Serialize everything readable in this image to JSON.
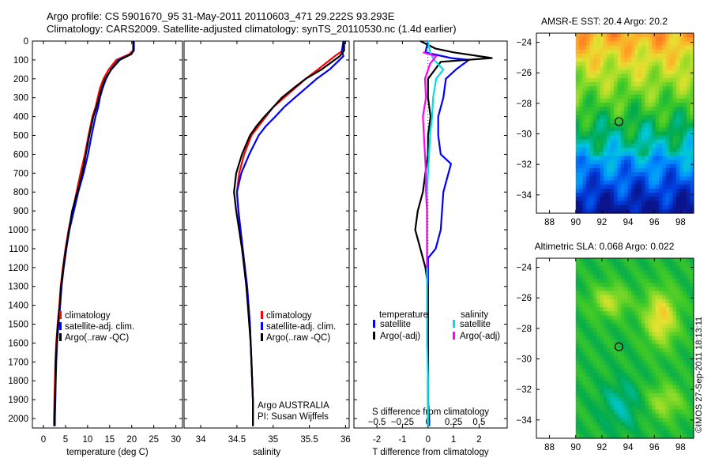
{
  "header": {
    "line1": "Argo profile: CS 5901670_95 31-May-2011 20110603_471 29.222S 93.293E",
    "line2": "Climatology: CARS2009. Satellite-adjusted climatology: synTS_20110530.nc (1.4d earlier)"
  },
  "credit": "©IMOS 27-Sep-2011 18:13:11",
  "colors": {
    "climatology": "#ff0000",
    "satellite": "#0000ff",
    "argo": "#000000",
    "sat_s": "#00e0e0",
    "argo_s": "#ff00ff"
  },
  "depth_ticks": [
    0,
    100,
    200,
    300,
    400,
    500,
    600,
    700,
    800,
    900,
    1000,
    1100,
    1200,
    1300,
    1400,
    1500,
    1600,
    1700,
    1800,
    1900,
    2000
  ],
  "chart_data": [
    {
      "type": "line",
      "xlabel": "temperature (deg C)",
      "xticks": [
        0,
        5,
        10,
        15,
        20,
        25,
        30
      ],
      "xlim": [
        -2.5,
        31.5
      ],
      "ylim": [
        2050,
        0
      ],
      "legend": [
        "climatology",
        "satellite-adj. clim.",
        "Argo(..raw -QC)"
      ],
      "series": [
        {
          "name": "climatology",
          "color": "#ff0000",
          "x": [
            20.3,
            20.3,
            19.4,
            16.5,
            14.8,
            13.6,
            12.8,
            12.3,
            11.8,
            11.1,
            10.2,
            9.4,
            8.4,
            7.5,
            6.6,
            5.7,
            5.0,
            4.4,
            3.9,
            3.6,
            3.2,
            2.9,
            2.7,
            2.6,
            2.5,
            2.4,
            2.4
          ],
          "y": [
            0,
            50,
            70,
            100,
            150,
            200,
            250,
            300,
            350,
            400,
            500,
            600,
            700,
            800,
            900,
            1000,
            1100,
            1200,
            1300,
            1400,
            1500,
            1600,
            1700,
            1800,
            1900,
            2000,
            2040
          ]
        },
        {
          "name": "satellite-adj. clim.",
          "color": "#0000ff",
          "x": [
            20.5,
            20.5,
            19.8,
            17.0,
            15.3,
            14.2,
            13.4,
            12.8,
            12.4,
            11.8,
            10.9,
            10.1,
            9.1,
            7.9,
            6.9,
            5.9,
            5.2,
            4.6,
            4.1,
            3.8,
            3.4,
            3.1,
            2.9,
            2.8,
            2.7,
            2.6,
            2.6
          ],
          "y": [
            0,
            50,
            70,
            100,
            150,
            200,
            250,
            300,
            350,
            400,
            500,
            600,
            700,
            800,
            900,
            1000,
            1100,
            1200,
            1300,
            1400,
            1500,
            1600,
            1700,
            1800,
            1900,
            2000,
            2040
          ]
        },
        {
          "name": "Argo(..raw -QC)",
          "color": "#000000",
          "x": [
            20.4,
            20.4,
            19.9,
            17.3,
            15.4,
            14.0,
            13.2,
            12.6,
            12.0,
            11.3,
            10.4,
            9.6,
            8.8,
            7.7,
            6.5,
            5.8,
            5.1,
            4.5,
            4.0,
            3.7,
            3.3,
            3.0,
            2.8,
            2.7,
            2.6,
            2.5,
            2.5
          ],
          "y": [
            0,
            50,
            70,
            100,
            150,
            200,
            250,
            300,
            350,
            400,
            500,
            600,
            700,
            800,
            900,
            1000,
            1100,
            1200,
            1300,
            1400,
            1500,
            1600,
            1700,
            1800,
            1900,
            2000,
            2040
          ]
        }
      ]
    },
    {
      "type": "line",
      "xlabel": "salinity",
      "xticks": [
        34,
        34.5,
        35,
        35.5,
        36
      ],
      "xticks_labels": [
        "34",
        "34.5",
        "35",
        "35.5",
        "36"
      ],
      "xlim": [
        33.77,
        36.05
      ],
      "ylim": [
        2050,
        0
      ],
      "legend": [
        "climatology",
        "satellite-adj. clim.",
        "Argo(..raw -QC)"
      ],
      "annotation": [
        "Argo AUSTRALIA",
        "PI: Susan Wijffels"
      ],
      "series": [
        {
          "name": "climatology",
          "color": "#ff0000",
          "x": [
            35.97,
            35.96,
            35.85,
            35.62,
            35.45,
            35.3,
            35.15,
            35.0,
            34.9,
            34.8,
            34.7,
            34.6,
            34.53,
            34.5,
            34.52,
            34.55,
            34.58,
            34.61,
            34.64,
            34.66,
            34.68,
            34.69,
            34.7,
            34.71,
            34.72,
            34.72
          ],
          "y": [
            0,
            50,
            80,
            150,
            200,
            250,
            300,
            350,
            400,
            450,
            500,
            600,
            700,
            800,
            900,
            1000,
            1100,
            1200,
            1300,
            1400,
            1500,
            1600,
            1700,
            1800,
            1900,
            2040
          ]
        },
        {
          "name": "satellite-adj. clim.",
          "color": "#0000ff",
          "x": [
            35.97,
            35.95,
            35.97,
            35.78,
            35.6,
            35.45,
            35.3,
            35.15,
            35.03,
            34.9,
            34.8,
            34.67,
            34.56,
            34.5,
            34.52,
            34.55,
            34.58,
            34.61,
            34.64,
            34.66,
            34.68,
            34.69,
            34.7,
            34.71,
            34.72,
            34.72
          ],
          "y": [
            0,
            50,
            80,
            150,
            200,
            250,
            300,
            350,
            400,
            450,
            500,
            600,
            700,
            800,
            900,
            1000,
            1100,
            1200,
            1300,
            1400,
            1500,
            1600,
            1700,
            1800,
            1900,
            2040
          ]
        },
        {
          "name": "Argo(..raw -QC)",
          "color": "#000000",
          "x": [
            35.98,
            35.98,
            35.92,
            35.67,
            35.45,
            35.28,
            35.12,
            35.0,
            34.88,
            34.77,
            34.68,
            34.57,
            34.49,
            34.46,
            34.49,
            34.53,
            34.57,
            34.6,
            34.63,
            34.65,
            34.67,
            34.69,
            34.7,
            34.71,
            34.72,
            34.72
          ],
          "y": [
            0,
            50,
            80,
            150,
            200,
            250,
            300,
            350,
            400,
            450,
            500,
            600,
            700,
            800,
            900,
            1000,
            1100,
            1200,
            1300,
            1400,
            1500,
            1600,
            1700,
            1800,
            1900,
            2040
          ]
        }
      ]
    },
    {
      "type": "line",
      "xlabel": "T difference from climatology",
      "xlabel_top": "S difference from climatology",
      "xticks": [
        -2,
        -1,
        0,
        1,
        2
      ],
      "xlim": [
        -2.9,
        3.1
      ],
      "sticks": [
        -0.5,
        -0.25,
        0,
        0.25,
        0.5
      ],
      "slim": [
        -0.725,
        0.775
      ],
      "ylim": [
        2050,
        0
      ],
      "legend_titles": [
        "temperature",
        "salinity"
      ],
      "legend": [
        [
          "satellite",
          "Argo(-adj)"
        ],
        [
          "satellite",
          "Argo(-adj)"
        ]
      ],
      "series": [
        {
          "name": "satellite",
          "color": "#0000ff",
          "kind": "T",
          "x": [
            0,
            -0.1,
            0.9,
            1.6,
            1.1,
            0.7,
            0.6,
            0.4,
            0.4,
            0.5,
            0.9,
            0.6,
            0.5,
            0.3,
            0.0,
            0.0,
            0.0,
            0.0,
            0.0,
            0.05,
            0.05
          ],
          "y": [
            0,
            60,
            90,
            100,
            150,
            200,
            300,
            400,
            500,
            600,
            650,
            800,
            1000,
            1100,
            1150,
            1300,
            1500,
            1700,
            1900,
            2000,
            2040
          ]
        },
        {
          "name": "Argo(-adj)",
          "color": "#000000",
          "kind": "T",
          "x": [
            -0.3,
            0.3,
            1.0,
            2.5,
            0.5,
            0.0,
            0.0,
            0.1,
            0.0,
            0.0,
            -0.1,
            -0.2,
            -0.4,
            -0.5,
            -0.3,
            -0.1,
            0.0,
            0.0,
            0.0,
            0.0,
            0.0
          ],
          "y": [
            0,
            40,
            60,
            90,
            110,
            200,
            300,
            400,
            500,
            600,
            700,
            800,
            900,
            1000,
            1100,
            1200,
            1300,
            1500,
            1700,
            1900,
            2040
          ]
        },
        {
          "name": "satellite",
          "color": "#00e0e0",
          "kind": "S",
          "x": [
            0,
            0.02,
            0.06,
            0.15,
            0.08,
            0.05,
            0.04,
            0.02,
            0.01,
            0.0,
            -0.01,
            -0.01,
            -0.01,
            -0.01,
            -0.01,
            0.0,
            0.0
          ],
          "y": [
            0,
            60,
            100,
            150,
            200,
            300,
            400,
            500,
            600,
            700,
            800,
            1000,
            1200,
            1400,
            1600,
            1800,
            2040
          ]
        },
        {
          "name": "Argo(-adj)",
          "color": "#ff00ff",
          "kind": "S",
          "x": [
            -0.05,
            0.08,
            0.02,
            -0.03,
            -0.02,
            -0.05,
            -0.04,
            -0.03,
            -0.02,
            -0.02,
            -0.01,
            -0.01,
            -0.01,
            -0.01
          ],
          "y": [
            60,
            80,
            120,
            200,
            300,
            400,
            500,
            600,
            700,
            800,
            900,
            1000,
            1100,
            1200
          ]
        }
      ]
    },
    {
      "type": "heatmap",
      "title": "AMSR-E SST: 20.4 Argo: 20.2",
      "xticks": [
        88,
        90,
        92,
        94,
        96,
        98
      ],
      "xlim": [
        87,
        99
      ],
      "yticks": [
        -24,
        -26,
        -28,
        -30,
        -32,
        -34
      ],
      "ylim": [
        -35.2,
        -23.4
      ],
      "data_x": [
        90,
        99
      ],
      "data_y": [
        -35.2,
        -23.4
      ],
      "marker": [
        93.3,
        -29.2
      ]
    },
    {
      "type": "heatmap",
      "title": "Altimetric SLA: 0.068 Argo: 0.022",
      "xticks": [
        88,
        90,
        92,
        94,
        96,
        98
      ],
      "xlim": [
        87,
        99
      ],
      "yticks": [
        -24,
        -26,
        -28,
        -30,
        -32,
        -34
      ],
      "ylim": [
        -35.2,
        -23.4
      ],
      "data_x": [
        90,
        99
      ],
      "data_y": [
        -35.2,
        -23.4
      ],
      "marker": [
        93.3,
        -29.2
      ]
    }
  ]
}
